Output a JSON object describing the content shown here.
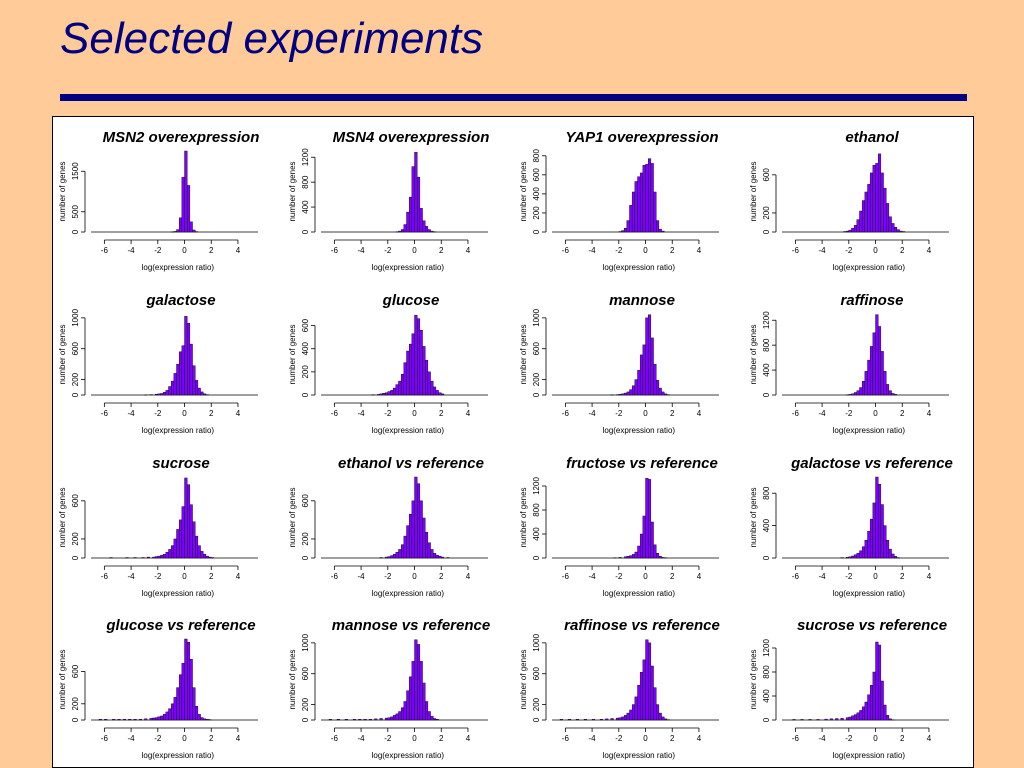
{
  "slide": {
    "title": "Selected experiments"
  },
  "chart_data": [
    {
      "type": "bar",
      "title": "MSN2 overexpression",
      "xlabel": "log(expression ratio)",
      "ylabel": "number of genes",
      "xlim": [
        -7,
        5.5
      ],
      "xticks": [
        -6,
        -4,
        -2,
        0,
        2,
        4
      ],
      "ylim": [
        0,
        2000
      ],
      "yticks": [
        0,
        500,
        1500
      ],
      "bin_width": 0.2,
      "bins": [
        -1.0,
        -0.8,
        -0.6,
        -0.4,
        -0.2,
        0.0,
        0.2,
        0.4,
        0.6,
        0.8
      ],
      "values": [
        5,
        15,
        60,
        350,
        1350,
        2000,
        1150,
        250,
        50,
        10
      ]
    },
    {
      "type": "bar",
      "title": "MSN4 overexpression",
      "xlabel": "log(expression ratio)",
      "ylabel": "number of genes",
      "xlim": [
        -7,
        5.5
      ],
      "xticks": [
        -6,
        -4,
        -2,
        0,
        2,
        4
      ],
      "ylim": [
        0,
        1300
      ],
      "yticks": [
        0,
        400,
        800,
        1200
      ],
      "bin_width": 0.2,
      "bins": [
        -1.4,
        -1.2,
        -1.0,
        -0.8,
        -0.6,
        -0.4,
        -0.2,
        0.0,
        0.2,
        0.4,
        0.6,
        0.8,
        1.0,
        1.2,
        1.4
      ],
      "values": [
        5,
        15,
        40,
        120,
        320,
        560,
        1050,
        1280,
        880,
        380,
        180,
        90,
        40,
        15,
        5
      ]
    },
    {
      "type": "bar",
      "title": "YAP1 overexpression",
      "xlabel": "log(expression ratio)",
      "ylabel": "number of genes",
      "xlim": [
        -7,
        5.5
      ],
      "xticks": [
        -6,
        -4,
        -2,
        0,
        2,
        4
      ],
      "ylim": [
        0,
        850
      ],
      "yticks": [
        0,
        200,
        400,
        600,
        800
      ],
      "bin_width": 0.2,
      "bins": [
        -2.0,
        -1.8,
        -1.6,
        -1.4,
        -1.2,
        -1.0,
        -0.8,
        -0.6,
        -0.4,
        -0.2,
        0.0,
        0.2,
        0.4,
        0.6,
        0.8,
        1.0,
        1.2
      ],
      "values": [
        5,
        15,
        40,
        120,
        280,
        420,
        530,
        580,
        620,
        700,
        710,
        770,
        720,
        420,
        120,
        30,
        10
      ]
    },
    {
      "type": "bar",
      "title": "ethanol",
      "xlabel": "log(expression ratio)",
      "ylabel": "number of genes",
      "xlim": [
        -7,
        5.5
      ],
      "xticks": [
        -6,
        -4,
        -2,
        0,
        2,
        4
      ],
      "ylim": [
        0,
        850
      ],
      "yticks": [
        0,
        200,
        600
      ],
      "bin_width": 0.2,
      "bins": [
        -2.4,
        -2.2,
        -2.0,
        -1.8,
        -1.6,
        -1.4,
        -1.2,
        -1.0,
        -0.8,
        -0.6,
        -0.4,
        -0.2,
        0.0,
        0.2,
        0.4,
        0.6,
        0.8,
        1.0,
        1.2,
        1.4,
        1.6,
        1.8,
        2.0
      ],
      "values": [
        5,
        10,
        20,
        40,
        70,
        130,
        220,
        330,
        420,
        500,
        620,
        700,
        720,
        820,
        620,
        460,
        300,
        160,
        90,
        50,
        25,
        10,
        5
      ]
    },
    {
      "type": "bar",
      "title": "galactose",
      "xlabel": "log(expression ratio)",
      "ylabel": "number of genes",
      "xlim": [
        -7,
        5.5
      ],
      "xticks": [
        -6,
        -4,
        -2,
        0,
        2,
        4
      ],
      "ylim": [
        0,
        1050
      ],
      "yticks": [
        0,
        200,
        600,
        1000
      ],
      "bin_width": 0.2,
      "bins": [
        -3.0,
        -2.6,
        -2.2,
        -2.0,
        -1.8,
        -1.6,
        -1.4,
        -1.2,
        -1.0,
        -0.8,
        -0.6,
        -0.4,
        -0.2,
        0.0,
        0.2,
        0.4,
        0.6,
        0.8,
        1.0,
        1.2,
        1.4,
        1.6
      ],
      "values": [
        3,
        5,
        10,
        15,
        20,
        35,
        60,
        110,
        180,
        280,
        400,
        560,
        640,
        1020,
        930,
        660,
        380,
        190,
        90,
        40,
        15,
        5
      ]
    },
    {
      "type": "bar",
      "title": "glucose",
      "xlabel": "log(expression ratio)",
      "ylabel": "number of genes",
      "xlim": [
        -7,
        5.5
      ],
      "xticks": [
        -6,
        -4,
        -2,
        0,
        2,
        4
      ],
      "ylim": [
        0,
        700
      ],
      "yticks": [
        0,
        200,
        400,
        600
      ],
      "bin_width": 0.2,
      "bins": [
        -3.2,
        -2.8,
        -2.6,
        -2.4,
        -2.2,
        -2.0,
        -1.8,
        -1.6,
        -1.4,
        -1.2,
        -1.0,
        -0.8,
        -0.6,
        -0.4,
        -0.2,
        0.0,
        0.2,
        0.4,
        0.6,
        0.8,
        1.0,
        1.2,
        1.4,
        1.6,
        1.8,
        2.0
      ],
      "values": [
        3,
        5,
        10,
        15,
        20,
        30,
        40,
        60,
        90,
        120,
        180,
        280,
        380,
        440,
        530,
        690,
        660,
        560,
        420,
        300,
        200,
        120,
        70,
        40,
        20,
        10
      ]
    },
    {
      "type": "bar",
      "title": "mannose",
      "xlabel": "log(expression ratio)",
      "ylabel": "number of genes",
      "xlim": [
        -7,
        5.5
      ],
      "xticks": [
        -6,
        -4,
        -2,
        0,
        2,
        4
      ],
      "ylim": [
        0,
        1050
      ],
      "yticks": [
        0,
        200,
        600,
        1000
      ],
      "bin_width": 0.2,
      "bins": [
        -2.6,
        -2.2,
        -2.0,
        -1.8,
        -1.6,
        -1.4,
        -1.2,
        -1.0,
        -0.8,
        -0.6,
        -0.4,
        -0.2,
        0.0,
        0.2,
        0.4,
        0.6,
        0.8,
        1.0,
        1.2,
        1.4,
        1.6
      ],
      "values": [
        3,
        5,
        10,
        15,
        25,
        40,
        70,
        120,
        200,
        320,
        520,
        650,
        1000,
        1040,
        740,
        400,
        190,
        90,
        40,
        15,
        5
      ]
    },
    {
      "type": "bar",
      "title": "raffinose",
      "xlabel": "log(expression ratio)",
      "ylabel": "number of genes",
      "xlim": [
        -7,
        5.5
      ],
      "xticks": [
        -6,
        -4,
        -2,
        0,
        2,
        4
      ],
      "ylim": [
        0,
        1300
      ],
      "yticks": [
        0,
        400,
        800,
        1200
      ],
      "bin_width": 0.2,
      "bins": [
        -2.2,
        -2.0,
        -1.8,
        -1.6,
        -1.4,
        -1.2,
        -1.0,
        -0.8,
        -0.6,
        -0.4,
        -0.2,
        0.0,
        0.2,
        0.4,
        0.6,
        0.8,
        1.0,
        1.2,
        1.4
      ],
      "values": [
        5,
        10,
        20,
        40,
        70,
        120,
        220,
        380,
        560,
        780,
        1000,
        1290,
        1100,
        700,
        380,
        170,
        70,
        25,
        10
      ]
    },
    {
      "type": "bar",
      "title": "sucrose",
      "xlabel": "log(expression ratio)",
      "ylabel": "number of genes",
      "xlim": [
        -7,
        5.5
      ],
      "xticks": [
        -6,
        -4,
        -2,
        0,
        2,
        4
      ],
      "ylim": [
        0,
        850
      ],
      "yticks": [
        0,
        200,
        600
      ],
      "bin_width": 0.2,
      "bins": [
        -5.6,
        -4.4,
        -3.8,
        -3.2,
        -2.8,
        -2.4,
        -2.2,
        -2.0,
        -1.8,
        -1.6,
        -1.4,
        -1.2,
        -1.0,
        -0.8,
        -0.6,
        -0.4,
        -0.2,
        0.0,
        0.2,
        0.4,
        0.6,
        0.8,
        1.0,
        1.2,
        1.4,
        1.6,
        1.8,
        2.0
      ],
      "values": [
        5,
        5,
        5,
        5,
        10,
        10,
        15,
        20,
        30,
        40,
        60,
        90,
        130,
        200,
        300,
        400,
        540,
        840,
        770,
        560,
        380,
        230,
        130,
        70,
        40,
        20,
        10,
        5
      ]
    },
    {
      "type": "bar",
      "title": "ethanol vs reference",
      "xlabel": "log(expression ratio)",
      "ylabel": "number of genes",
      "xlim": [
        -7,
        5.5
      ],
      "xticks": [
        -6,
        -4,
        -2,
        0,
        2,
        4
      ],
      "ylim": [
        0,
        850
      ],
      "yticks": [
        0,
        200,
        600
      ],
      "bin_width": 0.2,
      "bins": [
        -2.6,
        -2.2,
        -2.0,
        -1.8,
        -1.6,
        -1.4,
        -1.2,
        -1.0,
        -0.8,
        -0.6,
        -0.4,
        -0.2,
        0.0,
        0.2,
        0.4,
        0.6,
        0.8,
        1.0,
        1.2,
        1.4,
        1.6,
        1.8,
        2.0,
        2.4
      ],
      "values": [
        5,
        10,
        15,
        25,
        40,
        60,
        90,
        140,
        230,
        340,
        460,
        600,
        850,
        780,
        600,
        420,
        270,
        160,
        90,
        50,
        30,
        20,
        10,
        5
      ]
    },
    {
      "type": "bar",
      "title": "fructose vs reference",
      "xlabel": "log(expression ratio)",
      "ylabel": "number of genes",
      "xlim": [
        -7,
        5.5
      ],
      "xticks": [
        -6,
        -4,
        -2,
        0,
        2,
        4
      ],
      "ylim": [
        0,
        1350
      ],
      "yticks": [
        0,
        400,
        800,
        1200
      ],
      "bin_width": 0.2,
      "bins": [
        -2.4,
        -2.0,
        -1.6,
        -1.4,
        -1.2,
        -1.0,
        -0.8,
        -0.6,
        -0.4,
        -0.2,
        0.0,
        0.2,
        0.4,
        0.6,
        0.8,
        1.0,
        1.2,
        1.4
      ],
      "values": [
        5,
        10,
        20,
        30,
        40,
        60,
        100,
        200,
        400,
        700,
        1330,
        1310,
        600,
        220,
        80,
        30,
        10,
        5
      ]
    },
    {
      "type": "bar",
      "title": "galactose vs reference",
      "xlabel": "log(expression ratio)",
      "ylabel": "number of genes",
      "xlim": [
        -7,
        5.5
      ],
      "xticks": [
        -6,
        -4,
        -2,
        0,
        2,
        4
      ],
      "ylim": [
        0,
        1000
      ],
      "yticks": [
        0,
        400,
        800
      ],
      "bin_width": 0.2,
      "bins": [
        -2.6,
        -2.2,
        -2.0,
        -1.8,
        -1.6,
        -1.4,
        -1.2,
        -1.0,
        -0.8,
        -0.6,
        -0.4,
        -0.2,
        0.0,
        0.2,
        0.4,
        0.6,
        0.8,
        1.0,
        1.2,
        1.4,
        1.6
      ],
      "values": [
        5,
        10,
        15,
        25,
        40,
        60,
        90,
        140,
        220,
        330,
        480,
        680,
        1000,
        910,
        660,
        400,
        220,
        110,
        50,
        20,
        5
      ]
    },
    {
      "type": "bar",
      "title": "glucose vs reference",
      "xlabel": "log(expression ratio)",
      "ylabel": "number of genes",
      "xlim": [
        -7,
        5.5
      ],
      "xticks": [
        -6,
        -4,
        -2,
        0,
        2,
        4
      ],
      "ylim": [
        0,
        1000
      ],
      "yticks": [
        0,
        200,
        600
      ],
      "bin_width": 0.2,
      "bins": [
        -6.4,
        -6.0,
        -5.4,
        -5.0,
        -4.6,
        -4.2,
        -3.8,
        -3.4,
        -3.0,
        -2.6,
        -2.4,
        -2.2,
        -2.0,
        -1.8,
        -1.6,
        -1.4,
        -1.2,
        -1.0,
        -0.8,
        -0.6,
        -0.4,
        -0.2,
        0.0,
        0.2,
        0.4,
        0.6,
        0.8,
        1.0,
        1.2,
        1.4,
        1.6,
        1.8
      ],
      "values": [
        10,
        10,
        10,
        10,
        10,
        10,
        10,
        10,
        15,
        20,
        25,
        30,
        40,
        50,
        70,
        100,
        140,
        200,
        280,
        400,
        560,
        700,
        1000,
        960,
        750,
        400,
        170,
        70,
        30,
        15,
        10,
        5
      ]
    },
    {
      "type": "bar",
      "title": "mannose vs reference",
      "xlabel": "log(expression ratio)",
      "ylabel": "number of genes",
      "xlim": [
        -7,
        5.5
      ],
      "xticks": [
        -6,
        -4,
        -2,
        0,
        2,
        4
      ],
      "ylim": [
        0,
        1050
      ],
      "yticks": [
        0,
        200,
        600,
        1000
      ],
      "bin_width": 0.2,
      "bins": [
        -6.4,
        -5.8,
        -5.2,
        -4.6,
        -4.2,
        -3.8,
        -3.4,
        -3.0,
        -2.6,
        -2.2,
        -2.0,
        -1.8,
        -1.6,
        -1.4,
        -1.2,
        -1.0,
        -0.8,
        -0.6,
        -0.4,
        -0.2,
        0.0,
        0.2,
        0.4,
        0.6,
        0.8,
        1.0,
        1.2,
        1.4,
        1.6
      ],
      "values": [
        10,
        10,
        10,
        10,
        10,
        10,
        10,
        15,
        20,
        25,
        30,
        40,
        60,
        80,
        110,
        160,
        240,
        380,
        560,
        760,
        1040,
        980,
        760,
        480,
        240,
        110,
        50,
        20,
        10
      ]
    },
    {
      "type": "bar",
      "title": "raffinose vs reference",
      "xlabel": "log(expression ratio)",
      "ylabel": "number of genes",
      "xlim": [
        -7,
        5.5
      ],
      "xticks": [
        -6,
        -4,
        -2,
        0,
        2,
        4
      ],
      "ylim": [
        0,
        1050
      ],
      "yticks": [
        0,
        200,
        600,
        1000
      ],
      "bin_width": 0.2,
      "bins": [
        -6.4,
        -5.8,
        -5.2,
        -4.6,
        -4.0,
        -3.4,
        -3.0,
        -2.6,
        -2.2,
        -2.0,
        -1.8,
        -1.6,
        -1.4,
        -1.2,
        -1.0,
        -0.8,
        -0.6,
        -0.4,
        -0.2,
        0.0,
        0.2,
        0.4,
        0.6,
        0.8,
        1.0,
        1.2,
        1.4,
        1.6
      ],
      "values": [
        10,
        10,
        10,
        10,
        10,
        10,
        15,
        20,
        25,
        30,
        40,
        60,
        90,
        130,
        200,
        300,
        450,
        620,
        780,
        1040,
        1000,
        700,
        420,
        200,
        90,
        40,
        15,
        5
      ]
    },
    {
      "type": "bar",
      "title": "sucrose vs reference",
      "xlabel": "log(expression ratio)",
      "ylabel": "number of genes",
      "xlim": [
        -7,
        5.5
      ],
      "xticks": [
        -6,
        -4,
        -2,
        0,
        2,
        4
      ],
      "ylim": [
        0,
        1350
      ],
      "yticks": [
        0,
        400,
        800,
        1200
      ],
      "bin_width": 0.2,
      "bins": [
        -6.2,
        -5.6,
        -5.0,
        -4.4,
        -3.8,
        -3.4,
        -3.0,
        -2.6,
        -2.2,
        -2.0,
        -1.8,
        -1.6,
        -1.4,
        -1.2,
        -1.0,
        -0.8,
        -0.6,
        -0.4,
        -0.2,
        0.0,
        0.2,
        0.4,
        0.6,
        0.8,
        1.0,
        1.2
      ],
      "values": [
        10,
        10,
        10,
        10,
        15,
        20,
        25,
        30,
        40,
        50,
        70,
        90,
        120,
        160,
        220,
        300,
        420,
        580,
        800,
        1300,
        1250,
        650,
        250,
        80,
        20,
        5
      ]
    }
  ]
}
